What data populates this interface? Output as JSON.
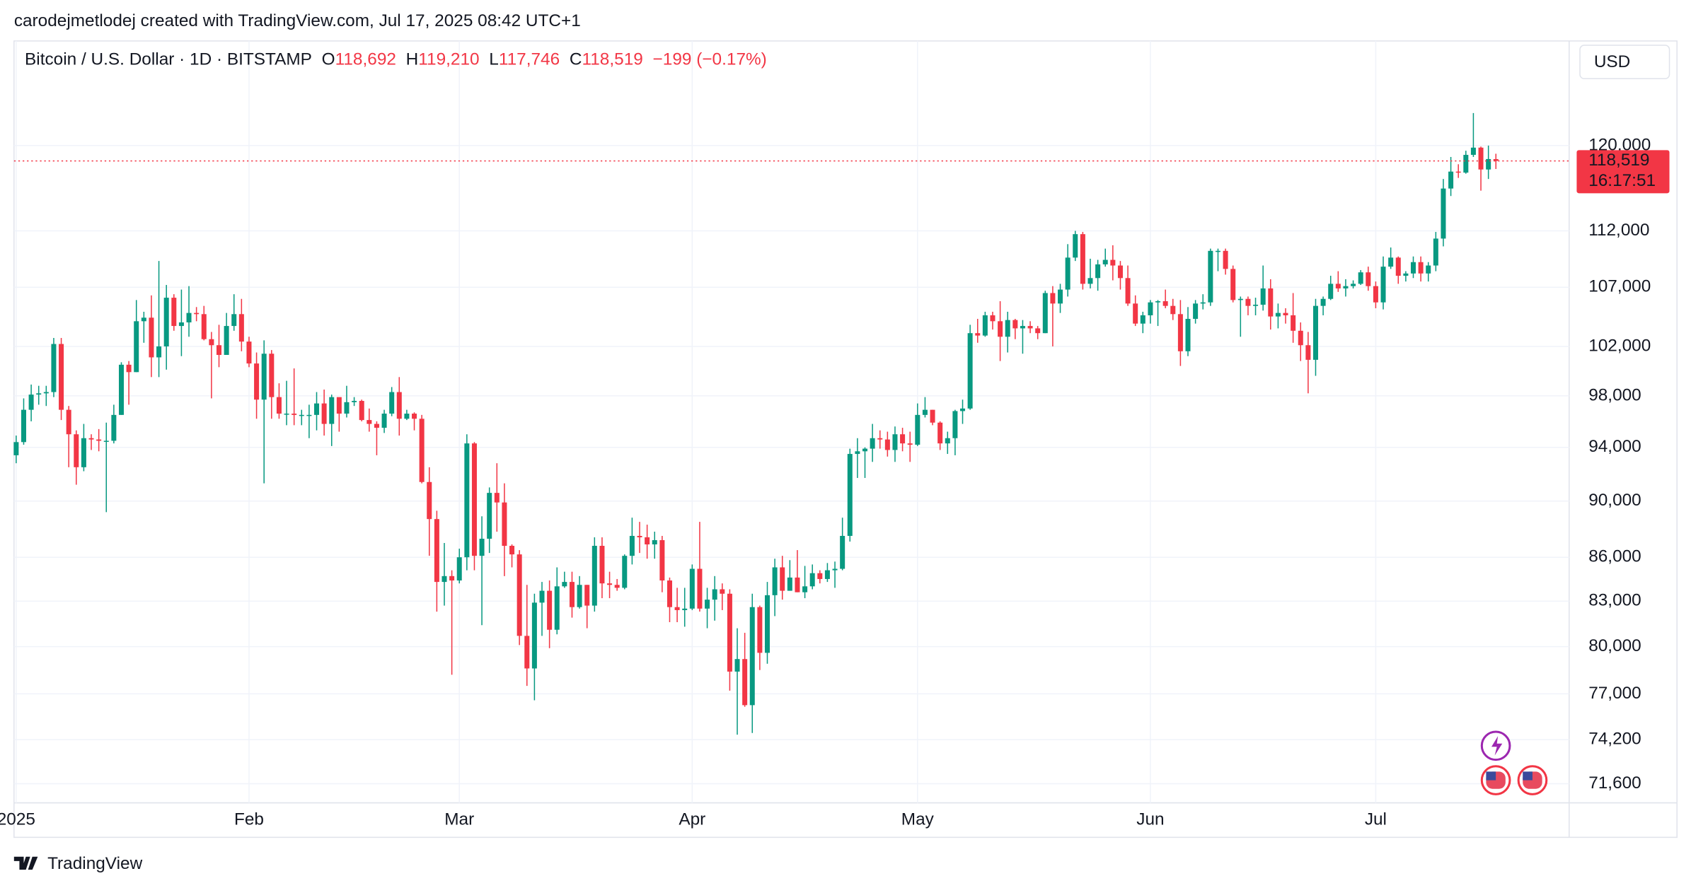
{
  "chart_data": {
    "type": "candlestick",
    "author_line": "carodejmetlodej created with TradingView.com, Jul 17, 2025 08:42 UTC+1",
    "title": "Bitcoin / U.S. Dollar · 1D · BITSTAMP",
    "ohlc_legend": [
      {
        "key": "O",
        "value": "118,692"
      },
      {
        "key": "H",
        "value": "119,210"
      },
      {
        "key": "L",
        "value": "117,746"
      },
      {
        "key": "C",
        "value": "118,519"
      }
    ],
    "change": "−199 (−0.17%)",
    "currency": "USD",
    "price_label": "118,519",
    "countdown": "16:17:51",
    "brand": "TradingView",
    "log_scale": true,
    "grid": true,
    "up_color": "#089981",
    "down_color": "#f23645",
    "ylim": [
      70500,
      130600
    ],
    "yticks": [
      {
        "value": 71600,
        "label": "71,600"
      },
      {
        "value": 74200,
        "label": "74,200"
      },
      {
        "value": 77000,
        "label": "77,000"
      },
      {
        "value": 80000,
        "label": "80,000"
      },
      {
        "value": 83000,
        "label": "83,000"
      },
      {
        "value": 86000,
        "label": "86,000"
      },
      {
        "value": 90000,
        "label": "90,000"
      },
      {
        "value": 94000,
        "label": "94,000"
      },
      {
        "value": 98000,
        "label": "98,000"
      },
      {
        "value": 102000,
        "label": "102,000"
      },
      {
        "value": 107000,
        "label": "107,000"
      },
      {
        "value": 112000,
        "label": "112,000"
      },
      {
        "value": 120000,
        "label": "120,000"
      }
    ],
    "categories": [
      "2025",
      null,
      null,
      null,
      null,
      null,
      null,
      null,
      null,
      null,
      null,
      null,
      null,
      null,
      null,
      null,
      null,
      null,
      null,
      null,
      null,
      null,
      null,
      null,
      null,
      null,
      null,
      null,
      null,
      null,
      null,
      "Feb",
      null,
      null,
      null,
      null,
      null,
      null,
      null,
      null,
      null,
      null,
      null,
      null,
      null,
      null,
      null,
      null,
      null,
      null,
      null,
      null,
      null,
      null,
      null,
      null,
      null,
      null,
      null,
      "Mar",
      null,
      null,
      null,
      null,
      null,
      null,
      null,
      null,
      null,
      null,
      null,
      null,
      null,
      null,
      null,
      null,
      null,
      null,
      null,
      null,
      null,
      null,
      null,
      null,
      null,
      null,
      null,
      null,
      null,
      null,
      "Apr",
      null,
      null,
      null,
      null,
      null,
      null,
      null,
      null,
      null,
      null,
      null,
      null,
      null,
      null,
      null,
      null,
      null,
      null,
      null,
      null,
      null,
      null,
      null,
      null,
      null,
      null,
      null,
      null,
      null,
      "May",
      null,
      null,
      null,
      null,
      null,
      null,
      null,
      null,
      null,
      null,
      null,
      null,
      null,
      null,
      null,
      null,
      null,
      null,
      null,
      null,
      null,
      null,
      null,
      null,
      null,
      null,
      null,
      null,
      null,
      null,
      "Jun",
      null,
      null,
      null,
      null,
      null,
      null,
      null,
      null,
      null,
      null,
      null,
      null,
      null,
      null,
      null,
      null,
      null,
      null,
      null,
      null,
      null,
      null,
      null,
      null,
      null,
      null,
      null,
      null,
      null,
      "Jul",
      null,
      null,
      null,
      null,
      null,
      null,
      null,
      null,
      null,
      null,
      null,
      null,
      null,
      null,
      null,
      null
    ],
    "open": [
      93400,
      94400,
      96900,
      98100,
      98200,
      98300,
      102200,
      96900,
      95000,
      92500,
      94700,
      94600,
      94500,
      94500,
      96500,
      100500,
      99900,
      104100,
      104400,
      101100,
      102000,
      106100,
      103700,
      104000,
      104800,
      104700,
      102600,
      102100,
      101300,
      103700,
      104700,
      102400,
      100600,
      97700,
      101400,
      97900,
      96600,
      96600,
      96500,
      96500,
      96500,
      97400,
      95800,
      97900,
      96600,
      97500,
      97600,
      96100,
      95800,
      95500,
      96600,
      98300,
      96200,
      96600,
      96200,
      91400,
      88700,
      84300,
      84700,
      84400,
      86000,
      94300,
      86100,
      87300,
      90600,
      89900,
      86800,
      86200,
      80700,
      78600,
      82900,
      83700,
      81100,
      84000,
      84300,
      82600,
      84100,
      82700,
      86800,
      84200,
      84100,
      83900,
      86100,
      87500,
      87400,
      86900,
      87200,
      84400,
      82600,
      82400,
      82500,
      85200,
      82500,
      83100,
      83800,
      83500,
      78400,
      79200,
      76300,
      82600,
      79600,
      83400,
      85300,
      83700,
      84600,
      83600,
      84000,
      84900,
      84500,
      85100,
      85200,
      87500,
      93500,
      93700,
      93900,
      94700,
      94600,
      93800,
      95000,
      94300,
      94200,
      96500,
      96900,
      95900,
      94300,
      94700,
      96800,
      97000,
      103100,
      102900,
      104600,
      104100,
      102800,
      104200,
      103500,
      103700,
      103500,
      103100,
      106500,
      105600,
      106800,
      109600,
      111700,
      107300,
      107800,
      109000,
      109400,
      108900,
      107800,
      105600,
      103900,
      104600,
      105700,
      105800,
      105400,
      104700,
      101600,
      104300,
      105600,
      105700,
      110200,
      110200,
      108600,
      105900,
      106000,
      105400,
      105500,
      106900,
      104500,
      104800,
      104600,
      103300,
      102100,
      100900,
      105400,
      106000,
      107300,
      106900,
      107100,
      107300,
      108300,
      107100,
      105700,
      108800,
      109600,
      108000,
      108200,
      109200,
      108200,
      108900,
      111300,
      115900,
      117500,
      117400,
      119100,
      119800,
      117700,
      118692
    ],
    "high": [
      94900,
      97800,
      98900,
      98800,
      98800,
      102700,
      102700,
      97200,
      95300,
      95800,
      95000,
      95400,
      95900,
      97300,
      100700,
      100800,
      105900,
      104900,
      106300,
      109300,
      107200,
      106400,
      106800,
      107100,
      105300,
      105400,
      103200,
      103800,
      104800,
      106400,
      106000,
      102800,
      101500,
      102500,
      101700,
      99000,
      99200,
      100200,
      96900,
      97300,
      98300,
      98500,
      98100,
      97700,
      98800,
      97900,
      97700,
      97000,
      96000,
      96900,
      98700,
      99500,
      96900,
      96700,
      96500,
      92500,
      89300,
      87000,
      85100,
      86600,
      95000,
      94400,
      88900,
      91000,
      92800,
      91300,
      86900,
      86500,
      84100,
      83500,
      84300,
      84400,
      85300,
      85000,
      85000,
      84700,
      84100,
      87400,
      87400,
      85000,
      84500,
      86200,
      88800,
      88500,
      88300,
      87800,
      87500,
      84600,
      83900,
      83900,
      85500,
      88500,
      83900,
      84700,
      84200,
      83800,
      81200,
      80900,
      83500,
      82700,
      84300,
      85900,
      86100,
      85800,
      86500,
      85400,
      85500,
      85100,
      85600,
      85700,
      88800,
      93900,
      94700,
      94000,
      95800,
      95300,
      95200,
      95600,
      95500,
      95200,
      97400,
      97900,
      96900,
      96000,
      95200,
      96900,
      97700,
      103800,
      104300,
      104900,
      104900,
      105800,
      104900,
      104300,
      104200,
      104100,
      103700,
      106700,
      107100,
      107300,
      110800,
      112000,
      111900,
      109500,
      109400,
      110400,
      110700,
      109300,
      108900,
      106300,
      104900,
      105900,
      105900,
      106800,
      106000,
      105900,
      105300,
      105900,
      106400,
      110400,
      110400,
      110400,
      108900,
      106200,
      106200,
      106100,
      108900,
      107700,
      105600,
      105200,
      106500,
      104000,
      103200,
      106000,
      106200,
      108000,
      108400,
      107700,
      107600,
      108500,
      108800,
      107500,
      109700,
      110500,
      109700,
      108400,
      109700,
      109700,
      109200,
      111900,
      116800,
      118900,
      118200,
      119500,
      123200,
      119900,
      120000,
      119210
    ],
    "low": [
      92800,
      94200,
      96000,
      97300,
      97200,
      97900,
      96100,
      92500,
      91200,
      92200,
      93800,
      93700,
      89200,
      94300,
      96500,
      97300,
      99900,
      102300,
      99500,
      99500,
      100100,
      103300,
      101200,
      102800,
      104100,
      102500,
      97800,
      100300,
      101300,
      103300,
      101600,
      100300,
      96200,
      91300,
      96200,
      96200,
      95700,
      95700,
      95700,
      94700,
      95300,
      94900,
      94100,
      95200,
      96300,
      97200,
      96000,
      95200,
      93400,
      95100,
      96400,
      94900,
      96100,
      95300,
      91300,
      86100,
      82300,
      82700,
      78200,
      84200,
      85100,
      85100,
      81400,
      86300,
      87800,
      84700,
      85300,
      80100,
      77500,
      76600,
      80700,
      79900,
      80800,
      83900,
      81900,
      82500,
      81200,
      82300,
      83200,
      83200,
      83700,
      83800,
      85500,
      86300,
      85900,
      85900,
      83600,
      81600,
      81600,
      81300,
      82400,
      82300,
      81200,
      81700,
      82400,
      77200,
      74500,
      76200,
      74600,
      78500,
      78900,
      82000,
      83100,
      83700,
      83600,
      83200,
      83800,
      84200,
      84300,
      83900,
      85100,
      87100,
      91700,
      91700,
      92900,
      93900,
      93300,
      92900,
      93700,
      92900,
      94100,
      96300,
      95700,
      93800,
      93500,
      93400,
      95800,
      96900,
      102300,
      102800,
      103400,
      100800,
      101500,
      102600,
      101400,
      103100,
      102600,
      103100,
      102000,
      104800,
      106200,
      109300,
      106800,
      106900,
      106700,
      108800,
      107600,
      106800,
      105400,
      103700,
      103100,
      103900,
      103700,
      105200,
      104200,
      100400,
      101200,
      103900,
      105100,
      105400,
      108400,
      108100,
      105700,
      102800,
      104600,
      104600,
      105000,
      103400,
      103500,
      103900,
      102300,
      100800,
      98200,
      99600,
      104600,
      105900,
      106600,
      106200,
      106900,
      107200,
      106700,
      105200,
      105100,
      108600,
      107300,
      107500,
      107800,
      107500,
      107500,
      108400,
      110600,
      115200,
      116900,
      117300,
      118900,
      115700,
      116800,
      117746
    ],
    "close": [
      94400,
      96900,
      98100,
      98200,
      98300,
      102200,
      96900,
      95000,
      92500,
      94700,
      94600,
      94500,
      94500,
      96500,
      100500,
      99900,
      104100,
      104400,
      101100,
      102000,
      106100,
      103700,
      104000,
      104800,
      104700,
      102600,
      102100,
      101300,
      103700,
      104700,
      102400,
      100600,
      97700,
      101400,
      97900,
      96600,
      96600,
      96500,
      96500,
      96500,
      97400,
      95800,
      97900,
      96600,
      97500,
      97600,
      96100,
      95800,
      95500,
      96600,
      98300,
      96200,
      96600,
      96200,
      91400,
      88700,
      84300,
      84700,
      84400,
      86000,
      94300,
      86100,
      87300,
      90600,
      89900,
      86800,
      86200,
      80700,
      78600,
      82900,
      83700,
      81100,
      84000,
      84300,
      82600,
      84100,
      82700,
      86800,
      84200,
      84100,
      83900,
      86100,
      87500,
      87400,
      86900,
      87200,
      84400,
      82600,
      82400,
      82500,
      85200,
      82500,
      83100,
      83800,
      83500,
      78400,
      79200,
      76300,
      82600,
      79600,
      83400,
      85300,
      83700,
      84600,
      83600,
      84000,
      84900,
      84500,
      85100,
      85200,
      87500,
      93500,
      93700,
      93900,
      94700,
      94600,
      93800,
      95000,
      94300,
      94200,
      96500,
      96900,
      95900,
      94300,
      94700,
      96800,
      97000,
      103100,
      102900,
      104600,
      104100,
      102800,
      104200,
      103500,
      103700,
      103500,
      103100,
      106500,
      105600,
      106800,
      109600,
      111700,
      107300,
      107800,
      109000,
      109400,
      108900,
      107800,
      105600,
      103900,
      104600,
      105700,
      105800,
      105400,
      104700,
      101600,
      104300,
      105600,
      105700,
      110200,
      110200,
      108600,
      105900,
      106000,
      105400,
      105500,
      106900,
      104500,
      104800,
      104600,
      103300,
      102100,
      100900,
      105400,
      106000,
      107300,
      106900,
      107100,
      107300,
      108300,
      107100,
      105700,
      108800,
      109600,
      108000,
      108200,
      109200,
      108200,
      108900,
      111300,
      115900,
      117500,
      117400,
      119100,
      119800,
      117700,
      118700,
      118519
    ]
  }
}
